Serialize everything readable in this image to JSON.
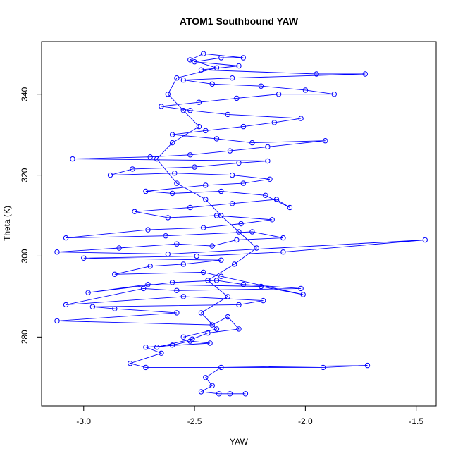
{
  "chart_data": {
    "type": "scatter",
    "title": "ATOM1 Southbound YAW",
    "xlabel": "YAW",
    "ylabel": "Theta (K)",
    "xlim": [
      -3.19,
      -1.41
    ],
    "ylim": [
      263,
      353
    ],
    "xticks": [
      -3.0,
      -2.5,
      -2.0,
      -1.5
    ],
    "xtick_labels": [
      "-3.0",
      "-2.5",
      "-2.0",
      "-1.5"
    ],
    "yticks": [
      280,
      300,
      320,
      340
    ],
    "ytick_labels": [
      "280",
      "300",
      "320",
      "340"
    ],
    "grid": false,
    "legend": "none",
    "series": [
      {
        "color": "#0000ff",
        "mode": "lines+markers",
        "marker": "open-circle",
        "points": [
          [
            -2.27,
            266
          ],
          [
            -2.34,
            266
          ],
          [
            -2.39,
            266
          ],
          [
            -2.47,
            266.5
          ],
          [
            -2.42,
            268
          ],
          [
            -2.45,
            270
          ],
          [
            -2.38,
            272.5
          ],
          [
            -1.72,
            273
          ],
          [
            -1.92,
            272.5
          ],
          [
            -2.72,
            272.5
          ],
          [
            -2.79,
            273.5
          ],
          [
            -2.65,
            276
          ],
          [
            -2.72,
            277.5
          ],
          [
            -2.43,
            278.5
          ],
          [
            -2.52,
            279
          ],
          [
            -2.6,
            278
          ],
          [
            -2.67,
            277.5
          ],
          [
            -2.51,
            279.5
          ],
          [
            -2.44,
            281
          ],
          [
            -2.3,
            282
          ],
          [
            -2.35,
            285
          ],
          [
            -2.42,
            283
          ],
          [
            -3.12,
            284
          ],
          [
            -2.58,
            286
          ],
          [
            -2.86,
            287
          ],
          [
            -2.96,
            287.5
          ],
          [
            -2.3,
            288
          ],
          [
            -2.19,
            289
          ],
          [
            -2.55,
            290
          ],
          [
            -3.08,
            288
          ],
          [
            -2.73,
            292
          ],
          [
            -2.58,
            291.5
          ],
          [
            -2.02,
            292
          ],
          [
            -2.28,
            293
          ],
          [
            -2.4,
            294
          ],
          [
            -2.6,
            293.5
          ],
          [
            -2.98,
            291
          ],
          [
            -2.71,
            293
          ],
          [
            -2.2,
            292.5
          ],
          [
            -2.01,
            290.5
          ],
          [
            -2.38,
            295
          ],
          [
            -2.46,
            296
          ],
          [
            -2.86,
            295.5
          ],
          [
            -2.7,
            297.5
          ],
          [
            -2.55,
            298
          ],
          [
            -2.38,
            299
          ],
          [
            -3.0,
            299.5
          ],
          [
            -2.49,
            300
          ],
          [
            -2.1,
            301
          ],
          [
            -1.46,
            304
          ],
          [
            -2.62,
            300.5
          ],
          [
            -3.12,
            301
          ],
          [
            -2.84,
            302
          ],
          [
            -2.58,
            303
          ],
          [
            -2.42,
            302.5
          ],
          [
            -2.31,
            304
          ],
          [
            -2.1,
            304.5
          ],
          [
            -2.24,
            306
          ],
          [
            -2.63,
            305
          ],
          [
            -3.08,
            304.5
          ],
          [
            -2.71,
            306.5
          ],
          [
            -2.46,
            307
          ],
          [
            -2.29,
            308
          ],
          [
            -2.15,
            309
          ],
          [
            -2.4,
            310
          ],
          [
            -2.62,
            309.5
          ],
          [
            -2.77,
            311
          ],
          [
            -2.52,
            312
          ],
          [
            -2.33,
            313
          ],
          [
            -2.13,
            314
          ],
          [
            -2.07,
            312
          ],
          [
            -2.18,
            315
          ],
          [
            -2.38,
            316
          ],
          [
            -2.6,
            315.5
          ],
          [
            -2.72,
            316
          ],
          [
            -2.45,
            317.5
          ],
          [
            -2.28,
            318
          ],
          [
            -2.16,
            319
          ],
          [
            -2.33,
            320
          ],
          [
            -2.59,
            320.5
          ],
          [
            -2.88,
            320
          ],
          [
            -2.78,
            321.5
          ],
          [
            -2.5,
            322
          ],
          [
            -2.3,
            323
          ],
          [
            -2.17,
            323.5
          ],
          [
            -3.05,
            324
          ],
          [
            -2.7,
            324.5
          ],
          [
            -2.52,
            325
          ],
          [
            -2.34,
            326
          ],
          [
            -2.17,
            327
          ],
          [
            -1.91,
            328.5
          ],
          [
            -2.24,
            328
          ],
          [
            -2.4,
            329
          ],
          [
            -2.6,
            330
          ],
          [
            -2.45,
            331
          ],
          [
            -2.28,
            332
          ],
          [
            -2.14,
            333
          ],
          [
            -2.02,
            334
          ],
          [
            -2.35,
            335
          ],
          [
            -2.52,
            336
          ],
          [
            -2.65,
            337
          ],
          [
            -2.48,
            338
          ],
          [
            -2.31,
            339
          ],
          [
            -2.12,
            340
          ],
          [
            -1.87,
            340
          ],
          [
            -2.0,
            341
          ],
          [
            -2.2,
            342
          ],
          [
            -2.42,
            342.5
          ],
          [
            -2.55,
            343.5
          ],
          [
            -2.33,
            344
          ],
          [
            -1.73,
            345
          ],
          [
            -1.95,
            345
          ],
          [
            -2.47,
            346
          ],
          [
            -2.3,
            347
          ],
          [
            -2.5,
            348
          ],
          [
            -2.38,
            349
          ],
          [
            -2.28,
            349
          ],
          [
            -2.46,
            350
          ],
          [
            -2.52,
            348.5
          ],
          [
            -2.4,
            346.5
          ],
          [
            -2.58,
            344
          ],
          [
            -2.62,
            340
          ],
          [
            -2.55,
            336
          ],
          [
            -2.48,
            332
          ],
          [
            -2.6,
            328
          ],
          [
            -2.67,
            324
          ],
          [
            -2.58,
            318
          ],
          [
            -2.45,
            314
          ],
          [
            -2.38,
            310
          ],
          [
            -2.3,
            306
          ],
          [
            -2.22,
            302
          ],
          [
            -2.32,
            298
          ],
          [
            -2.44,
            294
          ],
          [
            -2.35,
            290
          ],
          [
            -2.47,
            286
          ],
          [
            -2.4,
            282
          ],
          [
            -2.55,
            280
          ]
        ]
      }
    ]
  }
}
